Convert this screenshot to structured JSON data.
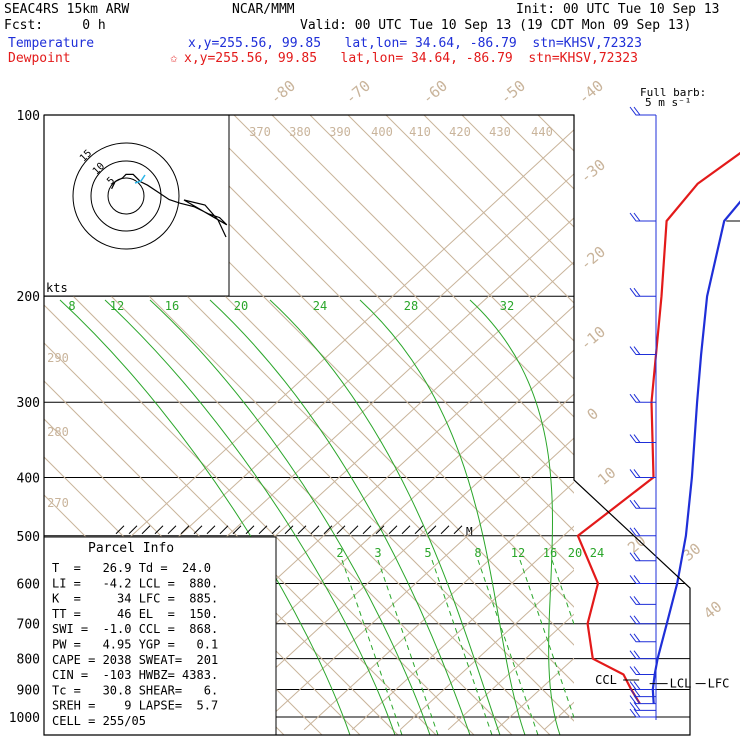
{
  "header": {
    "model": "SEAC4RS 15km ARW",
    "org": "NCAR/MMM",
    "init": "Init: 00 UTC Tue 10 Sep 13",
    "fcst": "Fcst:     0 h",
    "valid": "Valid: 00 UTC Tue 10 Sep 13 (19 CDT Mon 09 Sep 13)",
    "temp_label": "Temperature",
    "temp_info": "x,y=255.56, 99.85   lat,lon= 34.64, -86.79  stn=KHSV,72323",
    "dew_label": "Dewpoint",
    "dew_star": "✩",
    "dew_info": "x,y=255.56, 99.85   lat,lon= 34.64, -86.79  stn=KHSV,72323"
  },
  "colors": {
    "temperature": "#1f2fd8",
    "dewpoint": "#e31a1a",
    "isotherm": "#c9b49b",
    "mixing_ratio": "#2aa62a",
    "isobar": "#000000"
  },
  "wind_key": {
    "line1": "Full barb:",
    "line2": "5 m s⁻¹"
  },
  "hodograph": {
    "rings": [
      "5",
      "10",
      "15"
    ],
    "units_label": "kts"
  },
  "labels": {
    "el": "EL",
    "ccl": "CCL",
    "lcl": "LCL",
    "lfc": "LFC",
    "hail_marker": "M"
  },
  "parcel_info": {
    "title": "Parcel Info",
    "lines": [
      "T  =   26.9 Td =  24.0",
      "LI =   -4.2 LCL =  880.",
      "K  =     34 LFC =  885.",
      "TT =     46 EL  =  150.",
      "SWI =  -1.0 CCL =  868.",
      "PW =   4.95 YGP =   0.1",
      "CAPE = 2038 SWEAT=  201",
      "CIN =  -103 HWBZ= 4383.",
      "Tc =   30.8 SHEAR=   6.",
      "SREH =    9 LAPSE=  5.7",
      "CELL = 255/05"
    ]
  },
  "chart_data": {
    "type": "line",
    "title": "",
    "xlabel": "",
    "ylabel": "",
    "y_scale": "log",
    "ylim": [
      1000,
      100
    ],
    "pressure_ticks": [
      100,
      200,
      300,
      400,
      500,
      600,
      700,
      800,
      900,
      1000
    ],
    "isotherm_labels": [
      "-80",
      "-70",
      "-60",
      "-50",
      "-40",
      "-30",
      "-20",
      "-10",
      "0",
      "10",
      "20",
      "30",
      "40"
    ],
    "theta_labels": [
      "370",
      "380",
      "390",
      "400",
      "410",
      "420",
      "430",
      "440",
      "290",
      "280",
      "270"
    ],
    "mixing_ratio_labels_upper": [
      "8",
      "12",
      "16",
      "20",
      "24",
      "28",
      "32"
    ],
    "mixing_ratio_labels_lower": [
      "2",
      "3",
      "5",
      "8",
      "12",
      "16",
      "20",
      "24"
    ],
    "series": [
      {
        "name": "Temperature",
        "points": [
          {
            "p": 950,
            "t": 26.9
          },
          {
            "p": 900,
            "t": 23.5
          },
          {
            "p": 850,
            "t": 20.5
          },
          {
            "p": 800,
            "t": 17.5
          },
          {
            "p": 700,
            "t": 11.5
          },
          {
            "p": 600,
            "t": 4.5
          },
          {
            "p": 500,
            "t": -4.5
          },
          {
            "p": 400,
            "t": -16.5
          },
          {
            "p": 300,
            "t": -32.5
          },
          {
            "p": 250,
            "t": -42.5
          },
          {
            "p": 200,
            "t": -54.5
          },
          {
            "p": 150,
            "t": -68
          },
          {
            "p": 130,
            "t": -70
          },
          {
            "p": 115,
            "t": -68.5
          },
          {
            "p": 100,
            "t": -66
          }
        ]
      },
      {
        "name": "Dewpoint",
        "points": [
          {
            "p": 950,
            "t": 24.0
          },
          {
            "p": 900,
            "t": 19.0
          },
          {
            "p": 850,
            "t": 14.0
          },
          {
            "p": 800,
            "t": 4.0
          },
          {
            "p": 700,
            "t": -5.0
          },
          {
            "p": 600,
            "t": -12.0
          },
          {
            "p": 500,
            "t": -27.0
          },
          {
            "p": 400,
            "t": -24.5
          },
          {
            "p": 300,
            "t": -42.0
          },
          {
            "p": 200,
            "t": -64.0
          },
          {
            "p": 150,
            "t": -80.0
          },
          {
            "p": 130,
            "t": -82.0
          },
          {
            "p": 115,
            "t": -80.0
          },
          {
            "p": 100,
            "t": -79.0
          }
        ]
      }
    ],
    "wind_barbs_pressures": [
      1000,
      975,
      950,
      925,
      900,
      850,
      800,
      750,
      700,
      650,
      600,
      550,
      500,
      450,
      400,
      350,
      300,
      250,
      200,
      150,
      100
    ],
    "hodograph_points": [
      [
        -4,
        2
      ],
      [
        -3,
        4
      ],
      [
        -1,
        5
      ],
      [
        0,
        6
      ],
      [
        2,
        6
      ],
      [
        4,
        4
      ],
      [
        6,
        3
      ],
      [
        9,
        1
      ],
      [
        12,
        -1
      ],
      [
        15,
        -2
      ],
      [
        19,
        -3
      ],
      [
        23,
        -5
      ],
      [
        26,
        -6
      ],
      [
        28,
        -8
      ]
    ]
  }
}
